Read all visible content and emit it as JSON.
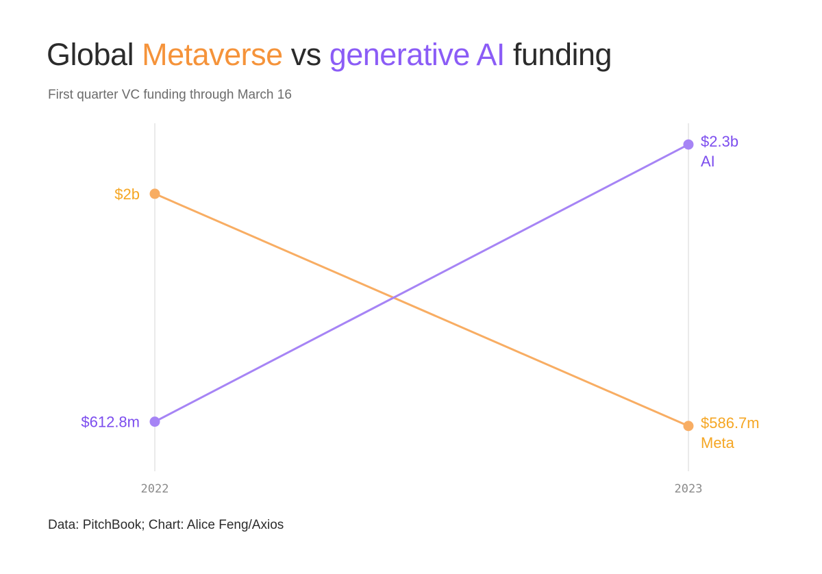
{
  "title": {
    "prefix": "Global ",
    "series_a": "Metaverse",
    "middle": " vs ",
    "series_b": "generative AI",
    "suffix": " funding"
  },
  "subtitle": "First quarter VC funding through March 16",
  "source": "Data: PitchBook; Chart: Alice Feng/Axios",
  "colors": {
    "metaverse_text": "#f5933a",
    "metaverse_line": "#f8ad63",
    "metaverse_label": "#f5a623",
    "ai_text": "#8b5cf6",
    "ai_line": "#a684f5",
    "ai_label": "#7c4dee",
    "axis_line": "#e4e4e4"
  },
  "chart_data": {
    "type": "line",
    "x": [
      "2022",
      "2023"
    ],
    "ylim": [
      0,
      2700
    ],
    "grid": false,
    "legend": "none",
    "series": [
      {
        "key": "metaverse",
        "name": "Meta",
        "values": [
          2000,
          586.7
        ],
        "labels": [
          "$2b",
          "$586.7m"
        ],
        "end_name": "Meta"
      },
      {
        "key": "ai",
        "name": "AI",
        "values": [
          612.8,
          2300
        ],
        "labels": [
          "$612.8m",
          "$2.3b"
        ],
        "end_name": "AI"
      }
    ]
  }
}
